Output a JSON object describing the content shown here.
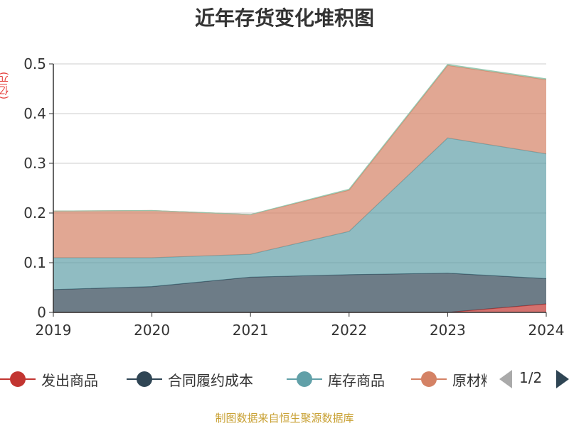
{
  "title": "近年存货变化堆积图",
  "y_unit": "(亿元)",
  "source": "制图数据来自恒生聚源数据库",
  "legend_pager": {
    "text": "1/2"
  },
  "legend": [
    {
      "name": "发出商品",
      "color": "#c23531"
    },
    {
      "name": "合同履约成本",
      "color": "#2f4554"
    },
    {
      "name": "库存商品",
      "color": "#61a0a8"
    },
    {
      "name": "原材料",
      "color": "#d48265"
    }
  ],
  "chart_data": {
    "type": "area",
    "stacked": true,
    "x": [
      "2019",
      "2020",
      "2021",
      "2022",
      "2023",
      "2024"
    ],
    "ylim": [
      0,
      0.5
    ],
    "yticks": [
      "0",
      "0.1",
      "0.2",
      "0.3",
      "0.4",
      "0.5"
    ],
    "grid": true,
    "legend_position": "bottom",
    "series": [
      {
        "name": "发出商品",
        "color": "#c23531",
        "values": [
          0,
          0,
          0,
          0,
          0,
          0.017
        ]
      },
      {
        "name": "合同履约成本",
        "color": "#2f4554",
        "values": [
          0.046,
          0.052,
          0.071,
          0.076,
          0.079,
          0.051
        ]
      },
      {
        "name": "库存商品",
        "color": "#61a0a8",
        "values": [
          0.064,
          0.058,
          0.046,
          0.087,
          0.272,
          0.251
        ]
      },
      {
        "name": "原材料",
        "color": "#d48265",
        "values": [
          0.094,
          0.095,
          0.08,
          0.083,
          0.146,
          0.149
        ]
      },
      {
        "name": "",
        "color": "#91c7ae",
        "values": [
          0,
          0,
          0,
          0.002,
          0.002,
          0.002
        ]
      }
    ]
  }
}
